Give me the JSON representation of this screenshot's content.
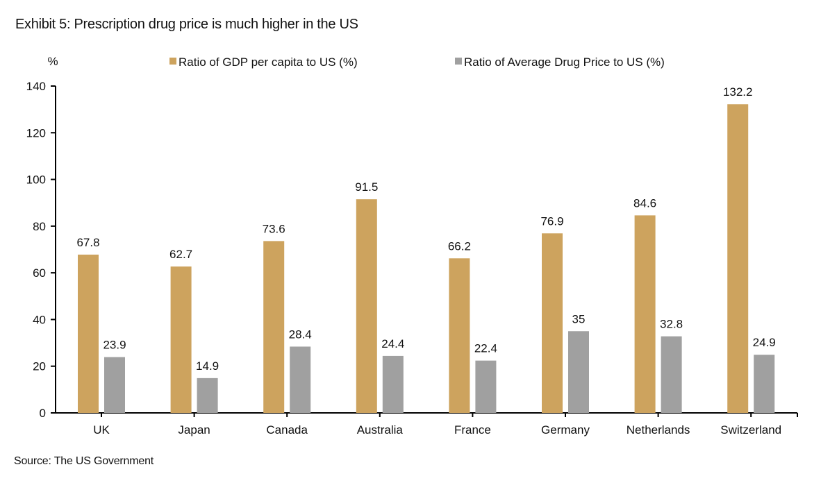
{
  "title": "Exhibit 5: Prescription drug price is much higher in the US",
  "source": "Source: The US Government",
  "chart_data": {
    "type": "bar",
    "title": "Exhibit 5: Prescription drug price is much higher in the US",
    "xlabel": "",
    "ylabel": "%",
    "ylim": [
      0,
      140
    ],
    "yticks": [
      0,
      20,
      40,
      60,
      80,
      100,
      120,
      140
    ],
    "grid": false,
    "legend_position": "top",
    "categories": [
      "UK",
      "Japan",
      "Canada",
      "Australia",
      "France",
      "Germany",
      "Netherlands",
      "Switzerland"
    ],
    "series": [
      {
        "name": "Ratio of GDP per capita to US (%)",
        "color": "#CDA35E",
        "values": [
          67.8,
          62.7,
          73.6,
          91.5,
          66.2,
          76.9,
          84.6,
          132.2
        ],
        "labels": [
          "67.8",
          "62.7",
          "73.6",
          "91.5",
          "66.2",
          "76.9",
          "84.6",
          "132.2"
        ]
      },
      {
        "name": "Ratio of Average Drug Price to US (%)",
        "color": "#A0A0A0",
        "values": [
          23.9,
          14.9,
          28.4,
          24.4,
          22.4,
          35,
          32.8,
          24.9
        ],
        "labels": [
          "23.9",
          "14.9",
          "28.4",
          "24.4",
          "22.4",
          "35",
          "32.8",
          "24.9"
        ]
      }
    ]
  }
}
